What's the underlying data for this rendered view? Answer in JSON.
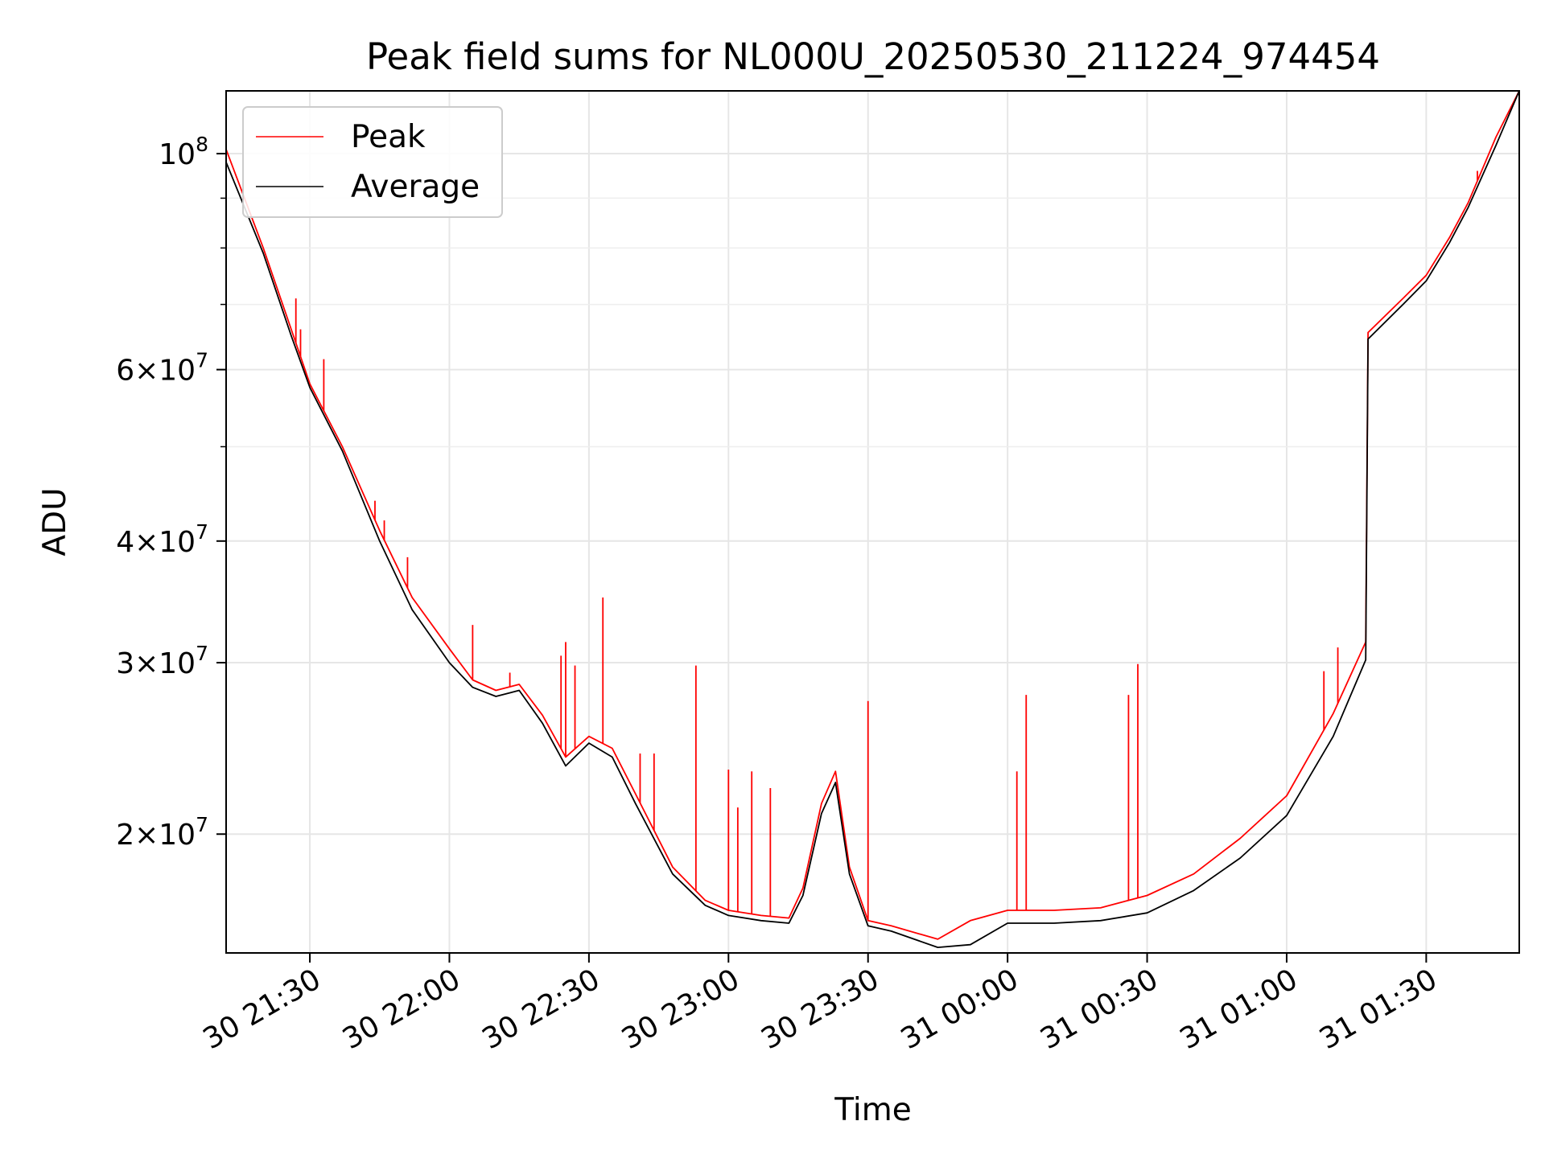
{
  "chart_data": {
    "type": "line",
    "title": "Peak field sums for NL000U_20250530_211224_974454",
    "xlabel": "Time",
    "ylabel": "ADU",
    "yscale": "log",
    "ylim": [
      15100000,
      116000000
    ],
    "xlim": [
      "30 21:12",
      "31 01:50"
    ],
    "grid": true,
    "legend_position": "upper-left",
    "x_tick_labels": [
      "30 21:30",
      "30 22:00",
      "30 22:30",
      "30 23:00",
      "30 23:30",
      "31 00:00",
      "31 00:30",
      "31 01:00",
      "31 01:30"
    ],
    "y_tick_labels": [
      {
        "value": 100000000,
        "mantissa": "",
        "base": "10",
        "exp": "8"
      },
      {
        "value": 60000000,
        "mantissa": "6×",
        "base": "10",
        "exp": "7"
      },
      {
        "value": 40000000,
        "mantissa": "4×",
        "base": "10",
        "exp": "7"
      },
      {
        "value": 30000000,
        "mantissa": "3×",
        "base": "10",
        "exp": "7"
      },
      {
        "value": 20000000,
        "mantissa": "2×",
        "base": "10",
        "exp": "7"
      }
    ],
    "y_minor_ticks": [
      90000000,
      80000000,
      70000000,
      50000000
    ],
    "series": [
      {
        "name": "Peak",
        "color": "#ff0000",
        "x": [
          "30 21:12",
          "30 21:20",
          "30 21:26",
          "30 21:30",
          "30 21:37",
          "30 21:45",
          "30 21:52",
          "30 22:00",
          "30 22:05",
          "30 22:10",
          "30 22:15",
          "30 22:20",
          "30 22:25",
          "30 22:30",
          "30 22:35",
          "30 22:40",
          "30 22:48",
          "30 22:55",
          "30 23:00",
          "30 23:07",
          "30 23:13",
          "30 23:16",
          "30 23:20",
          "30 23:23",
          "30 23:26",
          "30 23:30",
          "30 23:35",
          "30 23:45",
          "30 23:52",
          "31 00:00",
          "31 00:10",
          "31 00:20",
          "31 00:30",
          "31 00:40",
          "31 00:50",
          "31 01:00",
          "31 01:10",
          "31 01:17",
          "31 01:17.5",
          "31 01:25",
          "31 01:30",
          "31 01:35",
          "31 01:39",
          "31 01:45",
          "31 01:50"
        ],
        "y": [
          101000000,
          80000000,
          66000000,
          58000000,
          50000000,
          41000000,
          35000000,
          31000000,
          28800000,
          28100000,
          28500000,
          26500000,
          24000000,
          25200000,
          24500000,
          22000000,
          18500000,
          17100000,
          16700000,
          16500000,
          16400000,
          17600000,
          21500000,
          23200000,
          18500000,
          16300000,
          16100000,
          15600000,
          16300000,
          16700000,
          16700000,
          16800000,
          17300000,
          18200000,
          19800000,
          21900000,
          26600000,
          31500000,
          65500000,
          71000000,
          75000000,
          82000000,
          89000000,
          104000000,
          116000000
        ]
      },
      {
        "name": "Average",
        "color": "#000000",
        "x": [
          "30 21:12",
          "30 21:20",
          "30 21:26",
          "30 21:30",
          "30 21:37",
          "30 21:45",
          "30 21:52",
          "30 22:00",
          "30 22:05",
          "30 22:10",
          "30 22:15",
          "30 22:20",
          "30 22:25",
          "30 22:30",
          "30 22:35",
          "30 22:40",
          "30 22:48",
          "30 22:55",
          "30 23:00",
          "30 23:07",
          "30 23:13",
          "30 23:16",
          "30 23:20",
          "30 23:23",
          "30 23:26",
          "30 23:30",
          "30 23:35",
          "30 23:45",
          "30 23:52",
          "31 00:00",
          "31 00:10",
          "31 00:20",
          "31 00:30",
          "31 00:40",
          "31 00:50",
          "31 01:00",
          "31 01:10",
          "31 01:17",
          "31 01:17.5",
          "31 01:25",
          "31 01:30",
          "31 01:35",
          "31 01:39",
          "31 01:45",
          "31 01:50"
        ],
        "y": [
          98000000,
          79000000,
          65000000,
          57500000,
          49500000,
          40000000,
          34000000,
          30000000,
          28300000,
          27700000,
          28100000,
          26000000,
          23500000,
          24800000,
          24000000,
          21500000,
          18200000,
          16900000,
          16500000,
          16300000,
          16200000,
          17300000,
          21000000,
          22600000,
          18200000,
          16100000,
          15900000,
          15300000,
          15400000,
          16200000,
          16200000,
          16300000,
          16600000,
          17500000,
          18900000,
          20900000,
          25200000,
          30200000,
          64500000,
          70000000,
          74000000,
          81000000,
          88000000,
          102000000,
          116000000
        ]
      }
    ],
    "spikes": [
      {
        "series": "Peak",
        "x": "30 21:27",
        "y": 71000000
      },
      {
        "series": "Peak",
        "x": "30 21:28",
        "y": 66000000
      },
      {
        "series": "Peak",
        "x": "30 21:33",
        "y": 61500000
      },
      {
        "series": "Peak",
        "x": "30 21:44",
        "y": 44000000
      },
      {
        "series": "Peak",
        "x": "30 21:46",
        "y": 42000000
      },
      {
        "series": "Peak",
        "x": "30 21:51",
        "y": 38500000
      },
      {
        "series": "Peak",
        "x": "30 22:05",
        "y": 32800000
      },
      {
        "series": "Peak",
        "x": "30 22:13",
        "y": 29300000
      },
      {
        "series": "Peak",
        "x": "30 22:24",
        "y": 30500000
      },
      {
        "series": "Peak",
        "x": "30 22:25",
        "y": 31500000
      },
      {
        "series": "Peak",
        "x": "30 22:27",
        "y": 29800000
      },
      {
        "series": "Peak",
        "x": "30 22:33",
        "y": 35000000
      },
      {
        "series": "Peak",
        "x": "30 22:41",
        "y": 24200000
      },
      {
        "series": "Peak",
        "x": "30 22:44",
        "y": 24200000
      },
      {
        "series": "Peak",
        "x": "30 22:53",
        "y": 29800000
      },
      {
        "series": "Peak",
        "x": "30 23:00",
        "y": 23300000
      },
      {
        "series": "Peak",
        "x": "30 23:02",
        "y": 21300000
      },
      {
        "series": "Peak",
        "x": "30 23:05",
        "y": 23200000
      },
      {
        "series": "Peak",
        "x": "30 23:09",
        "y": 22300000
      },
      {
        "series": "Peak",
        "x": "30 23:30",
        "y": 27400000
      },
      {
        "series": "Peak",
        "x": "31 00:02",
        "y": 23200000
      },
      {
        "series": "Peak",
        "x": "31 00:04",
        "y": 27800000
      },
      {
        "series": "Peak",
        "x": "31 00:26",
        "y": 27800000
      },
      {
        "series": "Peak",
        "x": "31 00:28",
        "y": 29900000
      },
      {
        "series": "Peak",
        "x": "31 01:08",
        "y": 29400000
      },
      {
        "series": "Peak",
        "x": "31 01:11",
        "y": 31100000
      },
      {
        "series": "Peak",
        "x": "31 01:41",
        "y": 96000000
      }
    ]
  }
}
